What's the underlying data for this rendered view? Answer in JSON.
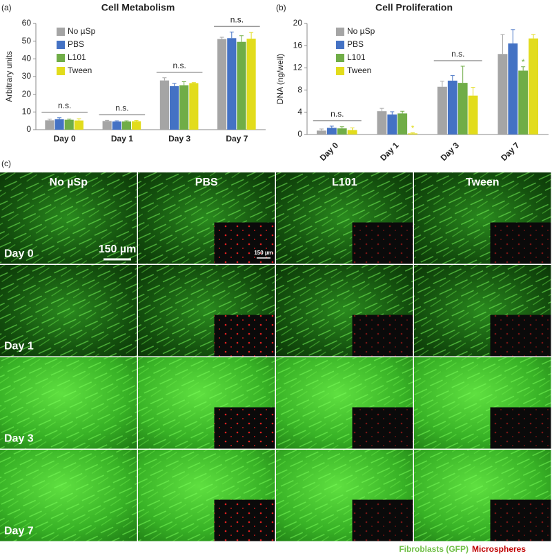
{
  "panel_labels": [
    "(a)",
    "(b)",
    "(c)"
  ],
  "chart_data": [
    {
      "type": "bar",
      "title": "Cell Metabolism",
      "y_label": "Arbitrary units",
      "categories": [
        "Day 0",
        "Day 1",
        "Day 3",
        "Day 7"
      ],
      "ylim": [
        0,
        60
      ],
      "yticks": [
        0,
        10,
        20,
        30,
        40,
        50,
        60
      ],
      "annotations": [
        "n.s.",
        "n.s.",
        "n.s.",
        "n.s."
      ],
      "series": [
        {
          "name": "No µSp",
          "color": "#a5a5a5",
          "values": [
            5.3,
            4.9,
            27.8,
            51.2
          ],
          "errors": [
            0.6,
            0.4,
            1.5,
            1.0
          ]
        },
        {
          "name": "PBS",
          "color": "#4472c4",
          "values": [
            5.9,
            4.6,
            24.6,
            51.7
          ],
          "errors": [
            0.8,
            0.4,
            1.5,
            3.5
          ]
        },
        {
          "name": "L101",
          "color": "#70ad47",
          "values": [
            5.6,
            4.6,
            25.1,
            49.6
          ],
          "errors": [
            0.4,
            0.4,
            2.0,
            3.5
          ]
        },
        {
          "name": "Tween",
          "color": "#e2dc1c",
          "values": [
            5.2,
            4.7,
            26.3,
            51.4
          ],
          "errors": [
            1.0,
            0.5,
            0.3,
            3.5
          ]
        }
      ]
    },
    {
      "type": "bar",
      "title": "Cell Proliferation",
      "y_label": "DNA  (ng/well)",
      "categories": [
        "Day 0",
        "Day 1",
        "Day 3",
        "Day 7"
      ],
      "ylim": [
        0,
        20
      ],
      "yticks": [
        0,
        4,
        8,
        12,
        16,
        20
      ],
      "annotations": [
        "n.s.",
        null,
        "n.s.",
        null
      ],
      "series": [
        {
          "name": "No µSp",
          "color": "#a5a5a5",
          "values": [
            0.7,
            4.2,
            8.6,
            14.5
          ],
          "errors": [
            0.3,
            0.5,
            1.0,
            3.5
          ]
        },
        {
          "name": "PBS",
          "color": "#4472c4",
          "values": [
            1.2,
            3.6,
            9.7,
            16.4
          ],
          "errors": [
            0.3,
            0.5,
            0.9,
            2.5
          ]
        },
        {
          "name": "L101",
          "color": "#70ad47",
          "values": [
            1.1,
            3.8,
            9.3,
            11.5
          ],
          "errors": [
            0.3,
            0.4,
            3.0,
            0.7
          ],
          "markers": [
            null,
            null,
            null,
            "*"
          ]
        },
        {
          "name": "Tween",
          "color": "#e2dc1c",
          "values": [
            0.8,
            0.2,
            7.0,
            17.3
          ],
          "errors": [
            0.4,
            0.1,
            1.5,
            0.7
          ],
          "markers": [
            null,
            "*",
            null,
            null
          ]
        }
      ]
    }
  ],
  "images": {
    "columns": [
      "No µSp",
      "PBS",
      "L101",
      "Tween"
    ],
    "rows": [
      "Day 0",
      "Day 1",
      "Day 3",
      "Day 7"
    ],
    "scale_bar": "150 µm",
    "inset_scale_bar": "150 µm"
  },
  "legend": [
    "Fibroblasts (GFP)",
    "Microspheres"
  ]
}
